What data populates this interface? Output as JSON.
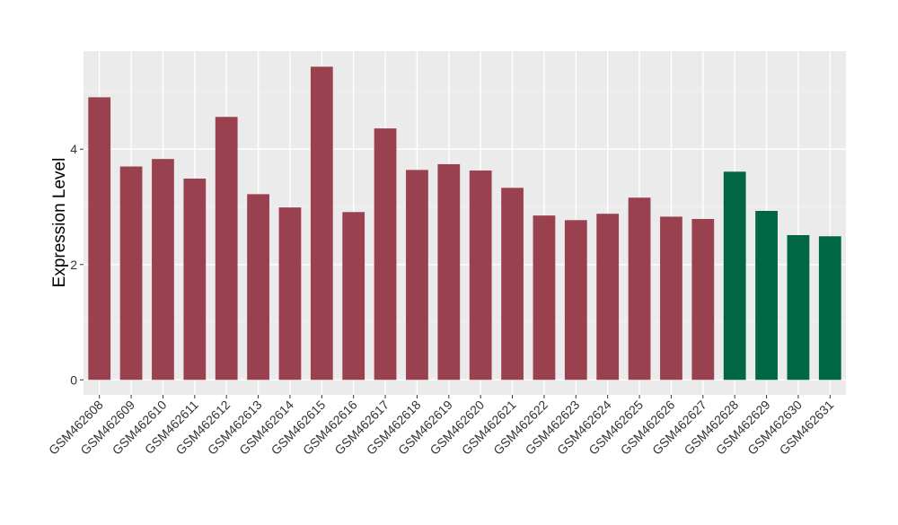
{
  "chart_data": {
    "type": "bar",
    "ylabel": "Expression Level",
    "categories": [
      "GSM462608",
      "GSM462609",
      "GSM462610",
      "GSM462611",
      "GSM462612",
      "GSM462613",
      "GSM462614",
      "GSM462615",
      "GSM462616",
      "GSM462617",
      "GSM462618",
      "GSM462619",
      "GSM462620",
      "GSM462621",
      "GSM462622",
      "GSM462623",
      "GSM462624",
      "GSM462625",
      "GSM462626",
      "GSM462627",
      "GSM462628",
      "GSM462629",
      "GSM462630",
      "GSM462631"
    ],
    "values": [
      4.9,
      3.7,
      3.83,
      3.49,
      4.56,
      3.22,
      2.99,
      5.43,
      2.91,
      4.36,
      3.64,
      3.74,
      3.63,
      3.33,
      2.85,
      2.77,
      2.88,
      3.16,
      2.83,
      2.79,
      3.61,
      2.93,
      2.51,
      2.49
    ],
    "colors": [
      "#9a4150",
      "#9a4150",
      "#9a4150",
      "#9a4150",
      "#9a4150",
      "#9a4150",
      "#9a4150",
      "#9a4150",
      "#9a4150",
      "#9a4150",
      "#9a4150",
      "#9a4150",
      "#9a4150",
      "#9a4150",
      "#9a4150",
      "#9a4150",
      "#9a4150",
      "#9a4150",
      "#9a4150",
      "#9a4150",
      "#006644",
      "#006644",
      "#006644",
      "#006644"
    ],
    "ylim": [
      -0.26,
      5.7
    ],
    "yticks": [
      0,
      2,
      4
    ],
    "minor_yticks": [
      1,
      3,
      5
    ],
    "grid": true
  }
}
